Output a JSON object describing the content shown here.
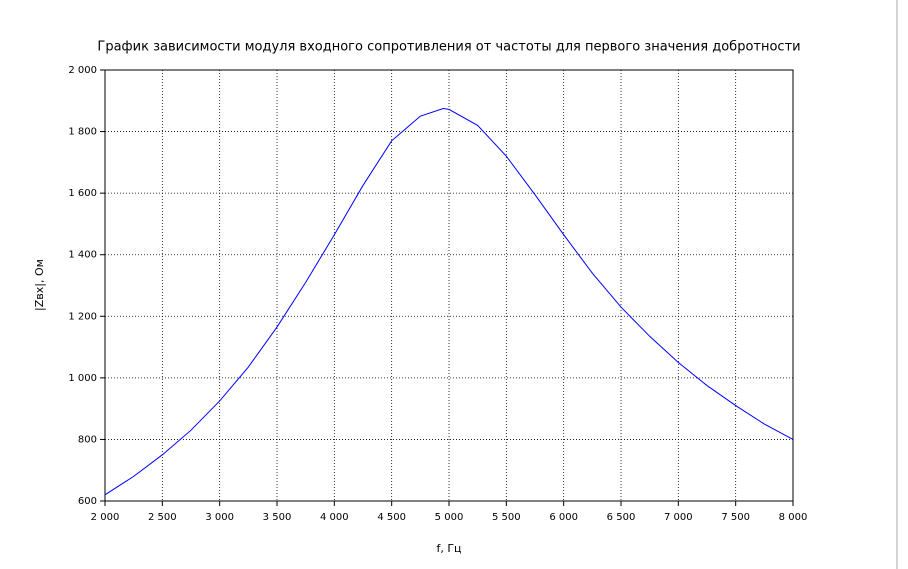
{
  "chart_data": {
    "type": "line",
    "title": "График зависимости модуля входного сопротивления от частоты для первого значения добротности",
    "x_label": "f, Гц",
    "y_label": "|Zвх|, Ом",
    "x": [
      2000,
      2250,
      2500,
      2750,
      3000,
      3250,
      3500,
      3750,
      4000,
      4250,
      4500,
      4750,
      4950,
      5000,
      5250,
      5500,
      5750,
      6000,
      6250,
      6500,
      6750,
      7000,
      7250,
      7500,
      7750,
      8000
    ],
    "series": [
      {
        "color": "#0000ff",
        "values": [
          620,
          680,
          750,
          830,
          925,
          1035,
          1165,
          1310,
          1465,
          1625,
          1770,
          1850,
          1875,
          1872,
          1820,
          1720,
          1595,
          1465,
          1340,
          1230,
          1135,
          1050,
          975,
          910,
          850,
          800
        ]
      }
    ],
    "xlim": [
      2000,
      8000
    ],
    "xticks": [
      {
        "value": 2000,
        "label": "2 000"
      },
      {
        "value": 2500,
        "label": "2 500"
      },
      {
        "value": 3000,
        "label": "3 000"
      },
      {
        "value": 3500,
        "label": "3 500"
      },
      {
        "value": 4000,
        "label": "4 000"
      },
      {
        "value": 4500,
        "label": "4 500"
      },
      {
        "value": 5000,
        "label": "5 000"
      },
      {
        "value": 5500,
        "label": "5 500"
      },
      {
        "value": 6000,
        "label": "6 000"
      },
      {
        "value": 6500,
        "label": "6 500"
      },
      {
        "value": 7000,
        "label": "7 000"
      },
      {
        "value": 7500,
        "label": "7 500"
      },
      {
        "value": 8000,
        "label": "8 000"
      }
    ],
    "ylim": [
      600,
      2000
    ],
    "yticks": [
      600,
      800,
      {
        "value": 1000,
        "label": "1 000"
      },
      {
        "value": 1200,
        "label": "1 200"
      },
      {
        "value": 1400,
        "label": "1 400"
      },
      {
        "value": 1600,
        "label": "1 600"
      },
      {
        "value": 1800,
        "label": "1 800"
      },
      {
        "value": 2000,
        "label": "2 000"
      }
    ],
    "grid": true
  }
}
